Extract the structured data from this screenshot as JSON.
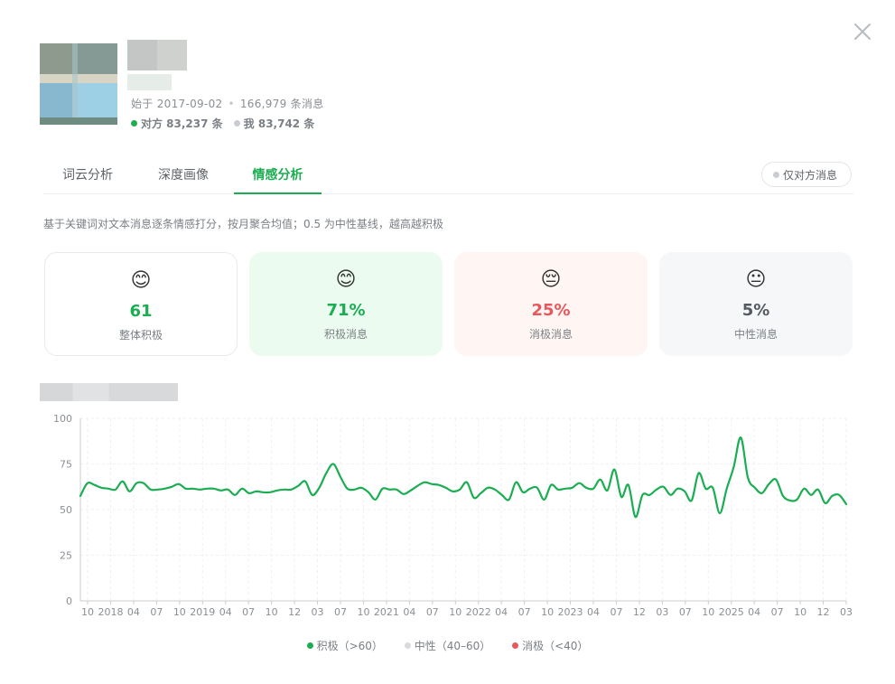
{
  "header": {
    "meta": {
      "since": "始于 2017-09-02",
      "separator": "•",
      "total": "166,979 条消息"
    },
    "counts": {
      "them": "对方 83,237 条",
      "me": "我 83,742 条"
    }
  },
  "tabs": [
    {
      "label": "词云分析"
    },
    {
      "label": "深度画像"
    },
    {
      "label": "情感分析"
    }
  ],
  "active_tab": "情感分析",
  "filter_label": "仅对方消息",
  "description": "基于关键词对文本消息逐条情感打分，按月聚合均值；0.5 为中性基线，越高越积极",
  "cards": [
    {
      "emoji": "😊",
      "value": "61",
      "label": "整体积极"
    },
    {
      "emoji": "😊",
      "value": "71%",
      "label": "积极消息"
    },
    {
      "emoji": "😔",
      "value": "25%",
      "label": "消极消息"
    },
    {
      "emoji": "😐",
      "value": "5%",
      "label": "中性消息"
    }
  ],
  "colors": {
    "accent": "#1aad52",
    "positive": "#1aad52",
    "negative": "#e5585b",
    "neutral": "#d8dadd"
  },
  "chart_data": {
    "type": "line",
    "ylim": [
      0,
      100
    ],
    "yticks": [
      "0",
      "25",
      "50",
      "75",
      "100"
    ],
    "grid": true,
    "xtick_labels": [
      "10",
      "2018",
      "04",
      "07",
      "10",
      "2019",
      "04",
      "07",
      "10",
      "12",
      "03",
      "07",
      "10",
      "2021",
      "04",
      "07",
      "10",
      "2022",
      "04",
      "07",
      "10",
      "2023",
      "04",
      "07",
      "12",
      "03",
      "07",
      "10",
      "2025",
      "04",
      "07",
      "10",
      "12",
      "03"
    ],
    "series": [
      {
        "color": "#1aad52",
        "values": [
          57.5,
          64.5,
          63.5,
          62,
          61.5,
          61,
          65.5,
          60,
          64.5,
          64.5,
          61,
          61,
          61.5,
          62.5,
          64,
          61.5,
          61.5,
          61,
          61.5,
          61.5,
          60.5,
          61,
          58,
          61.5,
          59,
          60,
          59.5,
          59.5,
          60.5,
          61,
          61,
          63,
          65.5,
          58,
          62,
          70,
          75,
          68,
          61.5,
          61,
          62,
          59.5,
          55.5,
          61.5,
          61,
          61,
          58.5,
          60.5,
          63,
          65,
          64,
          63.5,
          62,
          60,
          61,
          65,
          56.5,
          59,
          62,
          61,
          58,
          55.5,
          65,
          59.5,
          61.5,
          62,
          55.5,
          63.5,
          61,
          61.5,
          62,
          64.5,
          62,
          61.5,
          66.5,
          60.5,
          72,
          57,
          63.5,
          46,
          58,
          58,
          61,
          62.5,
          58,
          61.5,
          60,
          55,
          70,
          61.5,
          62,
          48,
          61.5,
          73.5,
          89.5,
          67.5,
          62,
          59,
          64,
          66.5,
          57.5,
          55,
          55.5,
          61.5,
          58,
          61,
          53.5,
          57.5,
          58,
          53
        ]
      }
    ],
    "legend": [
      {
        "label": "积极（>60）",
        "color": "#1aad52"
      },
      {
        "label": "中性（40–60）",
        "color": "#d8dadd"
      },
      {
        "label": "消极（<40）",
        "color": "#e5585b"
      }
    ]
  }
}
